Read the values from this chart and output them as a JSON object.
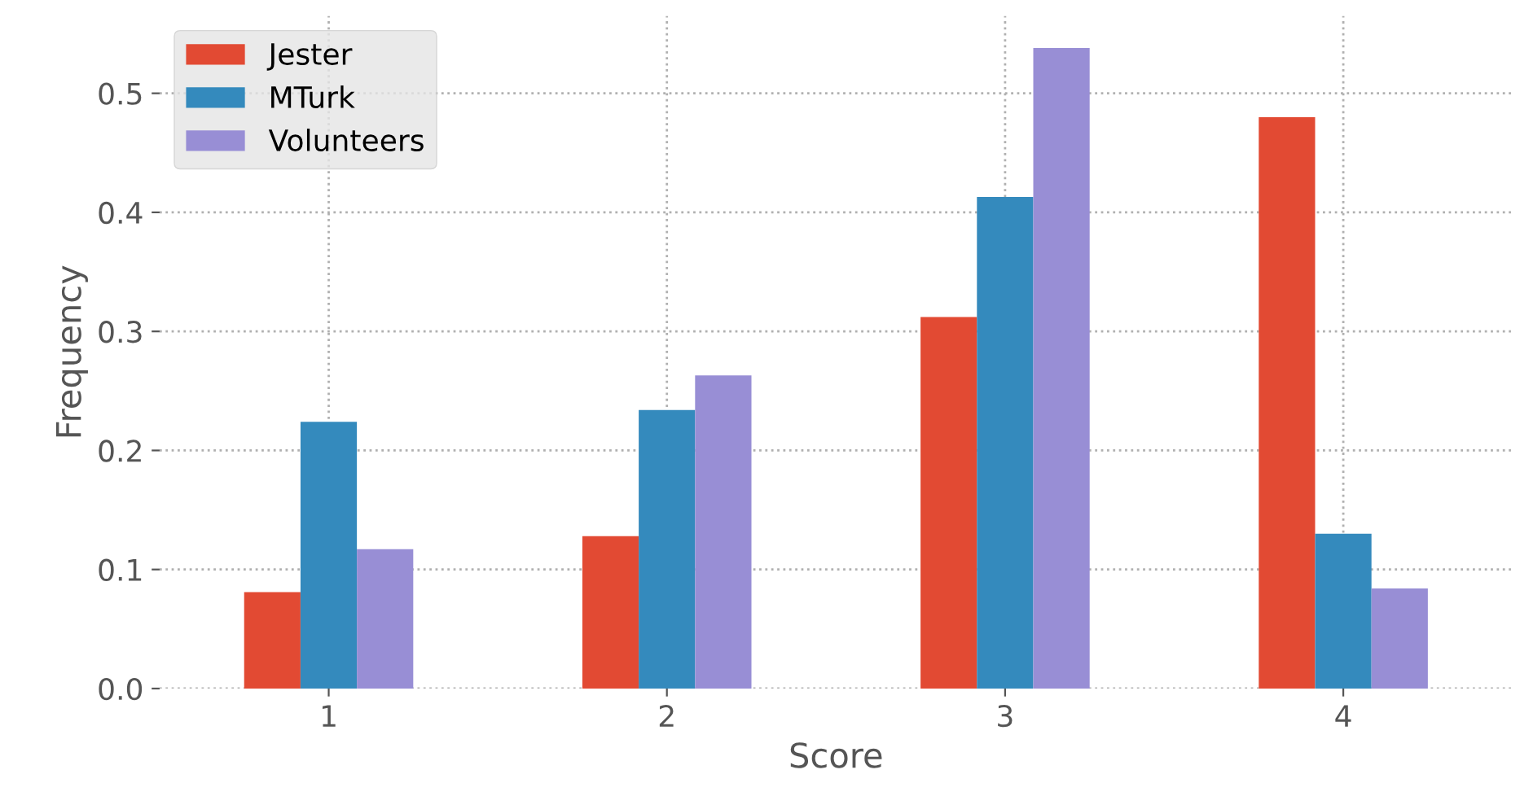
{
  "chart_data": {
    "type": "bar",
    "xlabel": "Score",
    "ylabel": "Frequency",
    "categories": [
      "1",
      "2",
      "3",
      "4"
    ],
    "series": [
      {
        "name": "Jester",
        "color": "#e24a33",
        "values": [
          0.081,
          0.128,
          0.312,
          0.48
        ]
      },
      {
        "name": "MTurk",
        "color": "#348abd",
        "values": [
          0.224,
          0.234,
          0.413,
          0.13
        ]
      },
      {
        "name": "Volunteers",
        "color": "#988ed5",
        "values": [
          0.117,
          0.263,
          0.538,
          0.084
        ]
      }
    ],
    "ylim": [
      0,
      0.565
    ],
    "yticks": [
      {
        "value": 0,
        "label": "0.0"
      },
      0.1,
      0.2,
      0.3,
      0.4,
      0.5
    ],
    "grid": true,
    "legend": "top left"
  }
}
